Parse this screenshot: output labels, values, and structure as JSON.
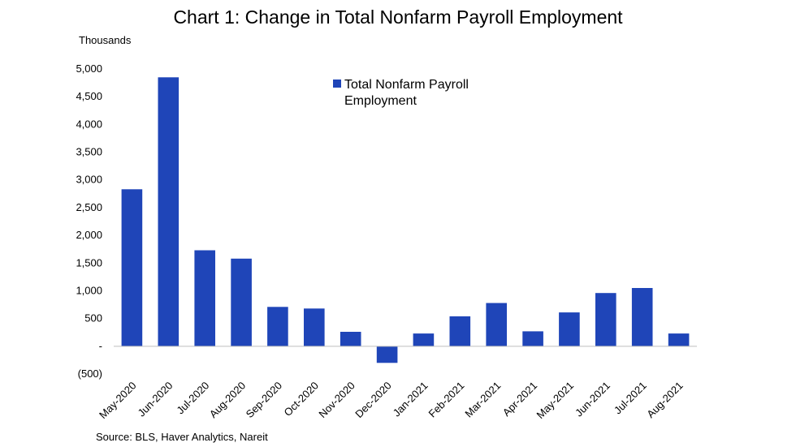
{
  "chart_data": {
    "type": "bar",
    "title": "Chart 1: Change in Total Nonfarm Payroll Employment",
    "ylabel": "Thousands",
    "xlabel": "",
    "categories": [
      "May-2020",
      "Jun-2020",
      "Jul-2020",
      "Aug-2020",
      "Sep-2020",
      "Oct-2020",
      "Nov-2020",
      "Dec-2020",
      "Jan-2021",
      "Feb-2021",
      "Mar-2021",
      "Apr-2021",
      "May-2021",
      "Jun-2021",
      "Jul-2021",
      "Aug-2021"
    ],
    "series": [
      {
        "name": "Total Nonfarm Payroll Employment",
        "values": [
          2830,
          4850,
          1730,
          1580,
          710,
          680,
          260,
          -300,
          230,
          540,
          780,
          270,
          610,
          960,
          1050,
          230
        ]
      }
    ],
    "ylim": [
      -500,
      5000
    ],
    "yticks": [
      -500,
      0,
      500,
      1000,
      1500,
      2000,
      2500,
      3000,
      3500,
      4000,
      4500,
      5000
    ],
    "ytick_labels": [
      "(500)",
      "-",
      "500",
      "1,000",
      "1,500",
      "2,000",
      "2,500",
      "3,000",
      "3,500",
      "4,000",
      "4,500",
      "5,000"
    ],
    "grid": false,
    "legend_position": "top-center",
    "bar_color": "#1f45b8",
    "source": "Source: BLS, Haver Analytics, Nareit"
  }
}
